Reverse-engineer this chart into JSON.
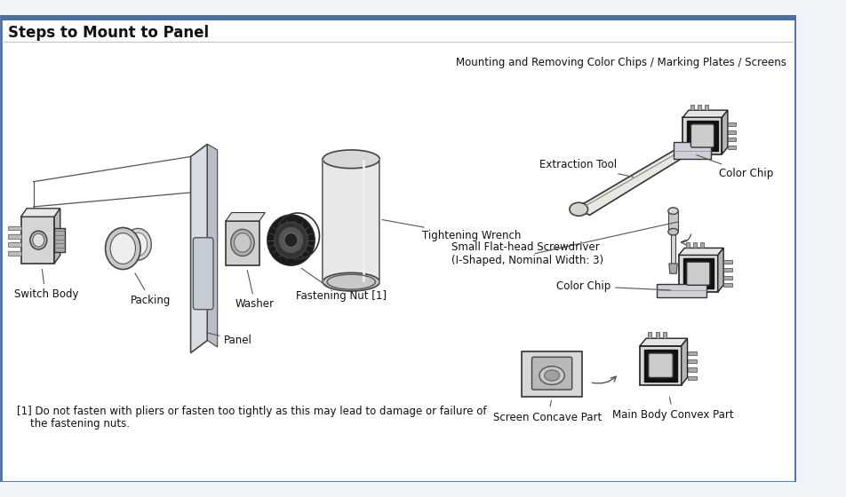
{
  "title": "Steps to Mount to Panel",
  "bg_color": "#f0f4f8",
  "outer_border_color": "#4a6fa5",
  "title_fontsize": 12,
  "right_section_title": "Mounting and Removing Color Chips / Marking Plates / Screens",
  "labels": {
    "switch_body": "Switch Body",
    "packing": "Packing",
    "panel": "Panel",
    "washer": "Washer",
    "fastening_nut": "Fastening Nut [1]",
    "tightening_wrench": "Tightening Wrench",
    "extraction_tool": "Extraction Tool",
    "color_chip_top": "Color Chip",
    "small_screwdriver": "Small Flat-head Screwdriver\n(I-Shaped, Nominal Width: 3)",
    "color_chip_mid": "Color Chip",
    "screen_concave": "Screen Concave Part",
    "main_body_convex": "Main Body Convex Part"
  },
  "footnote_line1": "[1] Do not fasten with pliers or fasten too tightly as this may lead to damage or failure of",
  "footnote_line2": "    the fastening nuts.",
  "text_color": "#111111",
  "label_fontsize": 8.5,
  "footnote_fontsize": 8.5,
  "line_color": "#333333"
}
